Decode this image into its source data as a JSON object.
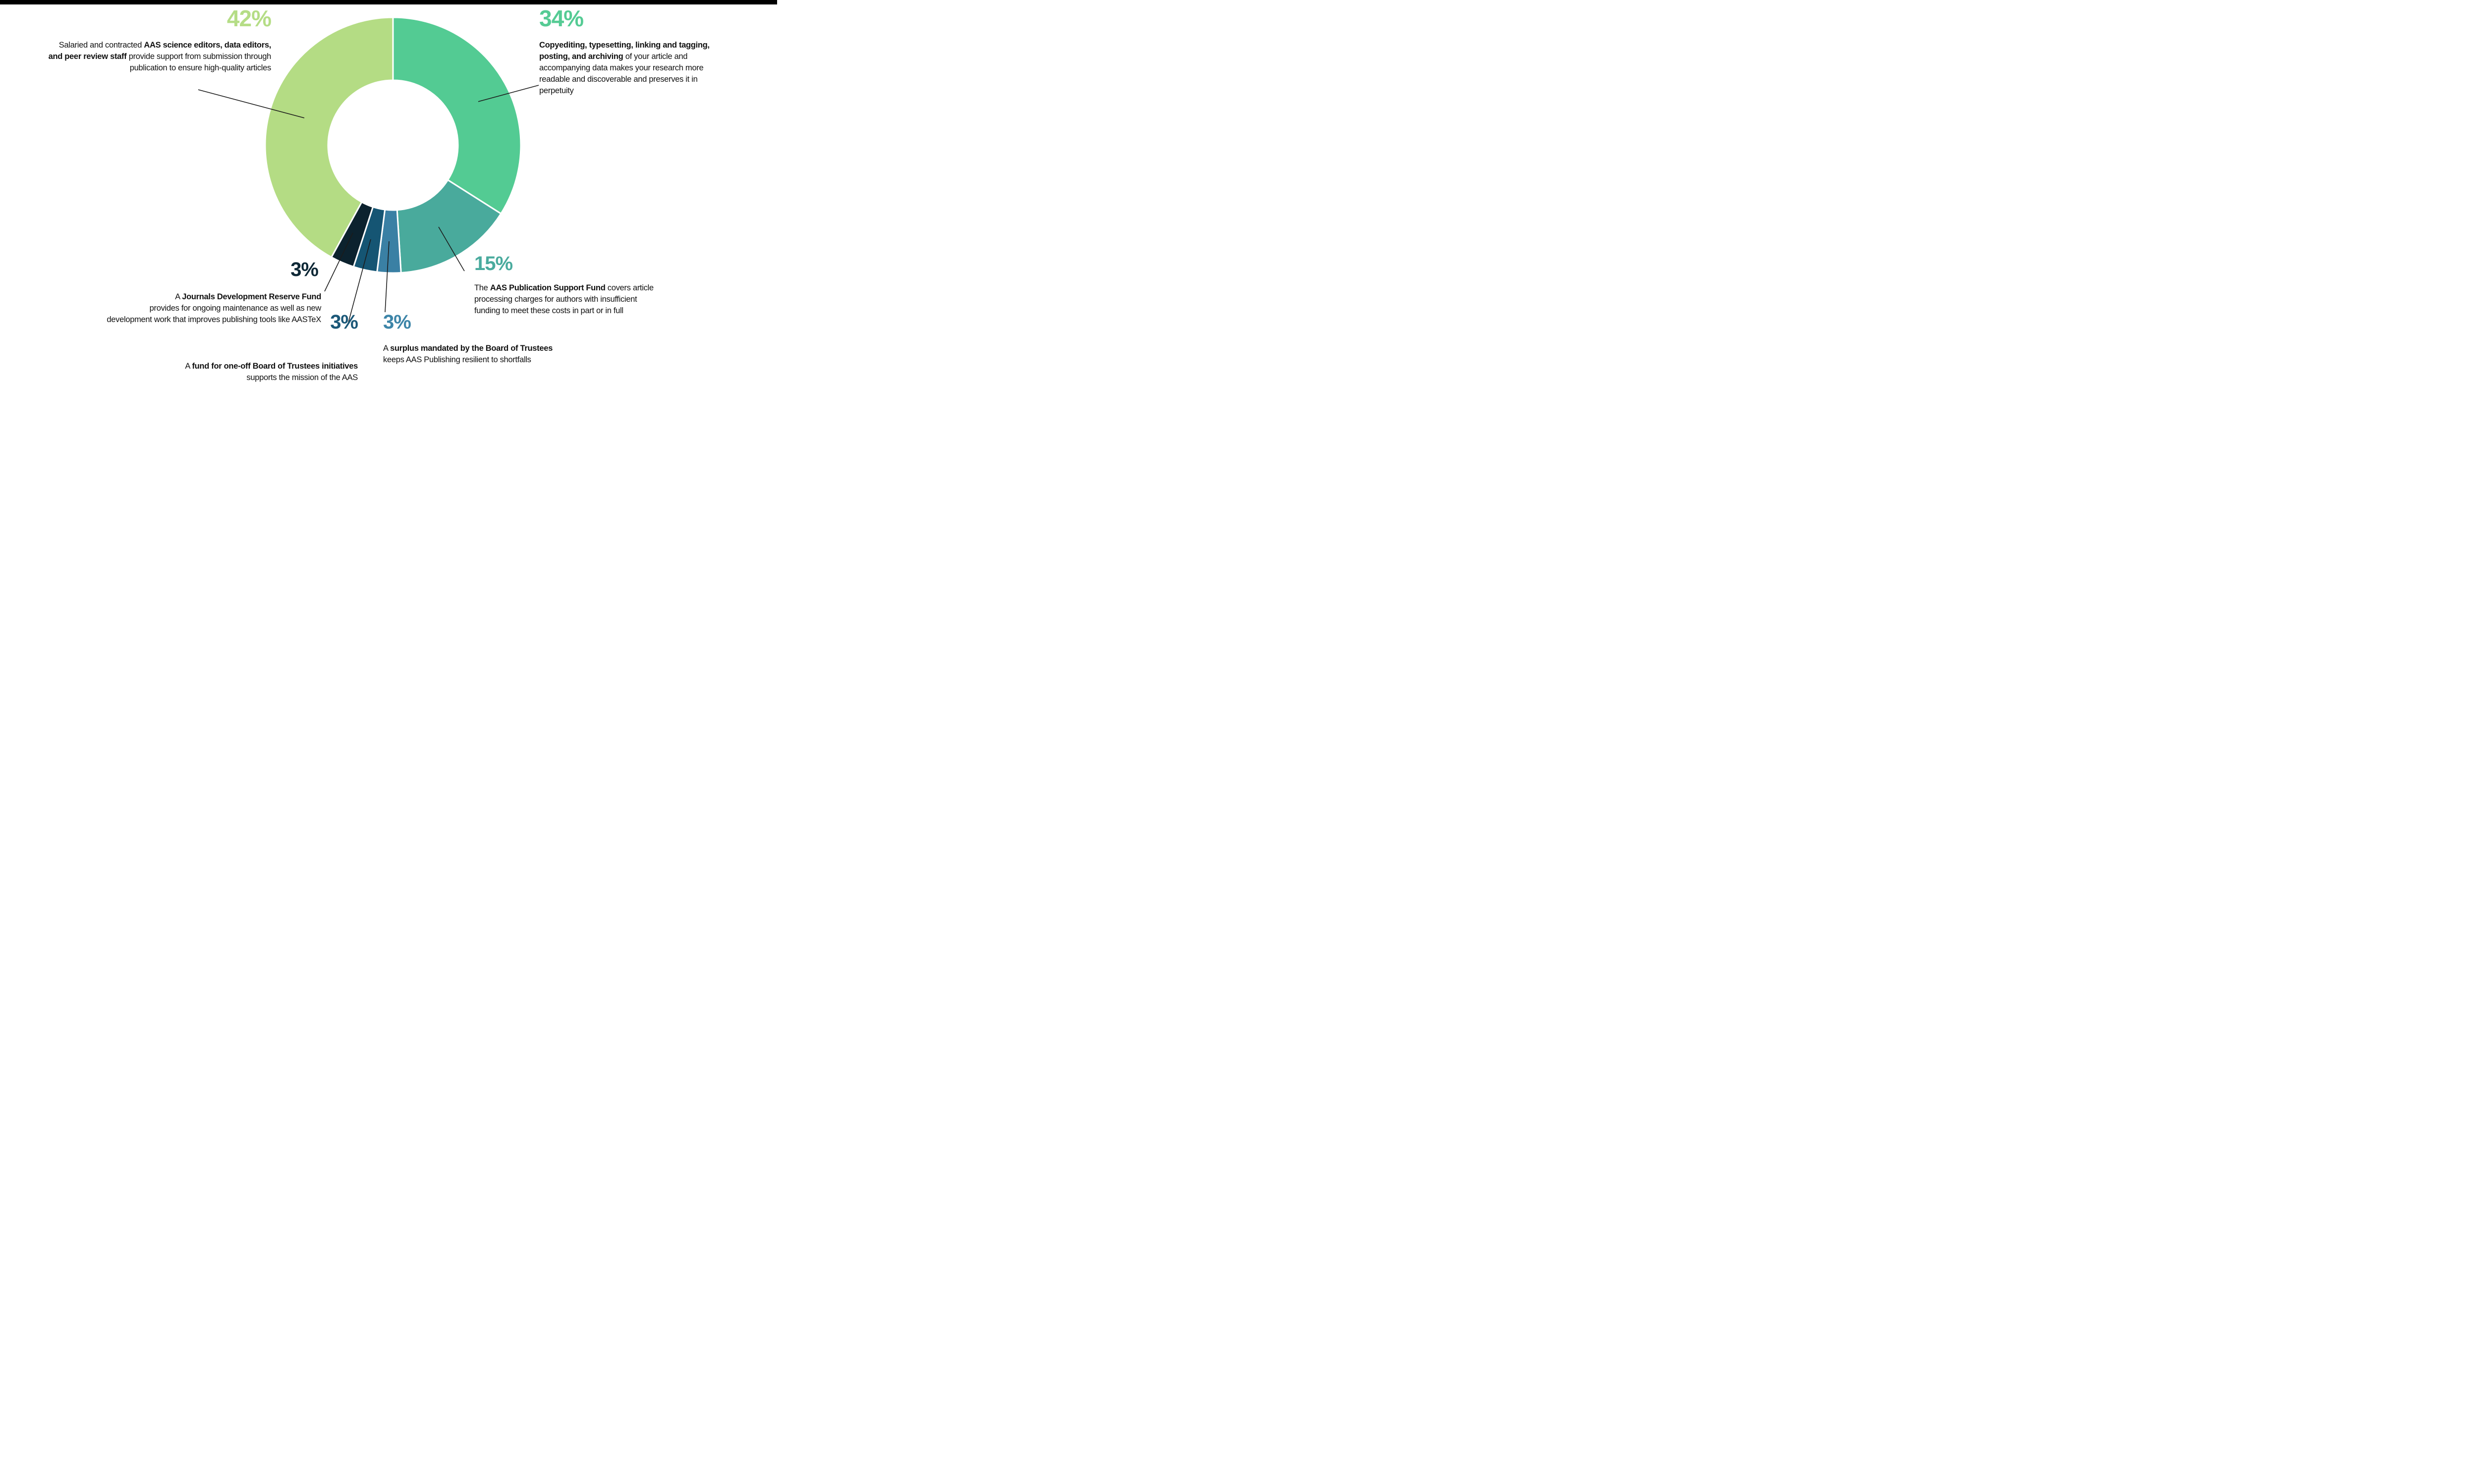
{
  "page": {
    "background": "#ffffff",
    "top_bar_color": "#000000"
  },
  "chart_data": {
    "type": "pie",
    "subtype": "donut",
    "title": "",
    "units": "%",
    "direction": "clockwise",
    "start_angle": "12 o'clock",
    "hole_ratio": 0.51,
    "separator_color": "#ffffff",
    "leader_line_color": "#1b1b1b",
    "slices": [
      {
        "id": "copyediting",
        "label": "Copyediting, typesetting, linking and tagging, posting, and archiving",
        "value": 34,
        "color": "#53cb93"
      },
      {
        "id": "support-fund",
        "label": "AAS Publication Support Fund",
        "value": 15,
        "color": "#49aa9c"
      },
      {
        "id": "surplus",
        "label": "Surplus mandated by the Board of Trustees",
        "value": 3,
        "color": "#3a80a4"
      },
      {
        "id": "one-off-fund",
        "label": "Fund for one-off Board of Trustees initiatives",
        "value": 3,
        "color": "#155573"
      },
      {
        "id": "reserve-fund",
        "label": "Journals Development Reserve Fund",
        "value": 3,
        "color": "#0c222e"
      },
      {
        "id": "editors-staff",
        "label": "AAS science editors, data editors, and peer review staff",
        "value": 42,
        "color": "#b4dc84"
      }
    ]
  },
  "callouts": {
    "c42": {
      "pct": "42%",
      "color": "#b5dd86",
      "parts": [
        {
          "t": "Salaried and contracted ",
          "b": false
        },
        {
          "t": "AAS science editors, data editors,\nand peer review staff",
          "b": true
        },
        {
          "t": " provide support from submission through\npublication to ensure high-quality articles",
          "b": false
        }
      ]
    },
    "c34": {
      "pct": "34%",
      "color": "#55cb94",
      "parts": [
        {
          "t": "Copyediting, typesetting, linking and tagging,\nposting, and archiving",
          "b": true
        },
        {
          "t": " of your article and\naccompanying data makes your research more\nreadable and discoverable and preserves it in\nperpetuity",
          "b": false
        }
      ]
    },
    "c15": {
      "pct": "15%",
      "color": "#4aab9e",
      "parts": [
        {
          "t": "The ",
          "b": false
        },
        {
          "t": "AAS Publication Support Fund",
          "b": true
        },
        {
          "t": " covers article\nprocessing charges for authors with insufficient\nfunding to meet these costs in part or in full",
          "b": false
        }
      ]
    },
    "cJ": {
      "pct": "3%",
      "color": "#0e2836",
      "parts": [
        {
          "t": "A ",
          "b": false
        },
        {
          "t": "Journals Development Reserve Fund",
          "b": true
        },
        {
          "t": "\nprovides for ongoing maintenance as well as new\ndevelopment work that improves publishing tools like AASTeX",
          "b": false
        }
      ]
    },
    "cO": {
      "pct": "3%",
      "color": "#1b5878",
      "parts": [
        {
          "t": "A ",
          "b": false
        },
        {
          "t": "fund for one-off Board of Trustees initiatives",
          "b": true
        },
        {
          "t": "\nsupports the mission of the AAS",
          "b": false
        }
      ]
    },
    "cS": {
      "pct": "3%",
      "color": "#3d85a8",
      "parts": [
        {
          "t": "A ",
          "b": false
        },
        {
          "t": "surplus mandated by the Board of Trustees",
          "b": true
        },
        {
          "t": "\nkeeps AAS Publishing resilient to shortfalls",
          "b": false
        }
      ]
    }
  }
}
